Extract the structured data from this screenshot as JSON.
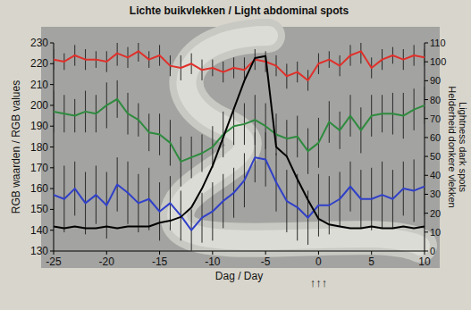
{
  "chart_data": {
    "type": "line",
    "title": "Lichte buikvlekken / Light abdominal spots",
    "xlabel": "Dag / Day",
    "ylabel": "RGB waarden / RGB values",
    "y2label": [
      "Helderheid donkere vlekken",
      "Lightness dark spots"
    ],
    "x": [
      -25,
      -24,
      -23,
      -22,
      -21,
      -20,
      -19,
      -18,
      -17,
      -16,
      -15,
      -14,
      -13,
      -12,
      -11,
      -10,
      -9,
      -8,
      -7,
      -6,
      -5,
      -4,
      -3,
      -2,
      -1,
      0,
      1,
      2,
      3,
      4,
      5,
      6,
      7,
      8,
      9,
      10
    ],
    "xlim": [
      -25,
      10
    ],
    "xticks": [
      -25,
      -20,
      -15,
      -10,
      -5,
      0,
      5,
      10
    ],
    "ylim": [
      130,
      230
    ],
    "yticks": [
      130,
      140,
      150,
      160,
      170,
      180,
      190,
      200,
      210,
      220,
      230
    ],
    "y2lim": [
      0,
      110
    ],
    "y2ticks": [
      0,
      10,
      20,
      30,
      40,
      50,
      60,
      70,
      80,
      90,
      100,
      110
    ],
    "grid": false,
    "series": [
      {
        "color": "#e0302a",
        "values": [
          222,
          221,
          224,
          222,
          222,
          221,
          225,
          223,
          226,
          222,
          224,
          219,
          218,
          220,
          217,
          218,
          216,
          218,
          217,
          222,
          221,
          219,
          214,
          216,
          212,
          220,
          222,
          219,
          224,
          226,
          218,
          222,
          224,
          222,
          224,
          223
        ],
        "errors": [
          5,
          4,
          5,
          5,
          4,
          5,
          6,
          5,
          5,
          4,
          5,
          5,
          6,
          5,
          5,
          4,
          5,
          5,
          6,
          5,
          5,
          5,
          6,
          5,
          5,
          5,
          4,
          5,
          5,
          6,
          5,
          5,
          4,
          5,
          5,
          4
        ]
      },
      {
        "color": "#2e8b3e",
        "values": [
          197,
          196,
          195,
          197,
          196,
          200,
          203,
          196,
          193,
          187,
          186,
          182,
          173,
          175,
          177,
          180,
          186,
          190,
          191,
          193,
          190,
          186,
          184,
          185,
          178,
          182,
          192,
          188,
          195,
          188,
          195,
          196,
          196,
          195,
          198,
          200
        ],
        "errors": [
          10,
          9,
          8,
          10,
          9,
          11,
          9,
          10,
          8,
          9,
          10,
          11,
          12,
          10,
          9,
          10,
          11,
          9,
          10,
          12,
          11,
          10,
          9,
          10,
          11,
          12,
          10,
          9,
          10,
          11,
          10,
          9,
          10,
          11,
          10,
          9
        ]
      },
      {
        "color": "#3040c8",
        "values": [
          157,
          155,
          160,
          153,
          157,
          152,
          162,
          158,
          153,
          155,
          149,
          153,
          147,
          140,
          146,
          149,
          154,
          158,
          164,
          175,
          174,
          163,
          154,
          151,
          146,
          152,
          152,
          155,
          161,
          155,
          155,
          157,
          155,
          160,
          159,
          161
        ],
        "errors": [
          14,
          16,
          13,
          15,
          14,
          16,
          13,
          15,
          14,
          15,
          14,
          13,
          12,
          10,
          12,
          14,
          13,
          12,
          13,
          12,
          13,
          14,
          15,
          16,
          13,
          15,
          14,
          13,
          12,
          14,
          15,
          16,
          14,
          13,
          15,
          14
        ]
      },
      {
        "color": "#000000",
        "axis": "y2",
        "values": [
          13,
          12,
          13,
          12,
          12,
          13,
          12,
          13,
          13,
          13,
          15,
          16,
          18,
          23,
          33,
          45,
          60,
          75,
          90,
          102,
          103,
          55,
          50,
          38,
          27,
          17,
          14,
          13,
          12,
          12,
          13,
          12,
          12,
          13,
          12,
          13
        ]
      }
    ],
    "annotations": [
      {
        "text": "↑↑↑",
        "x": 0
      }
    ]
  }
}
